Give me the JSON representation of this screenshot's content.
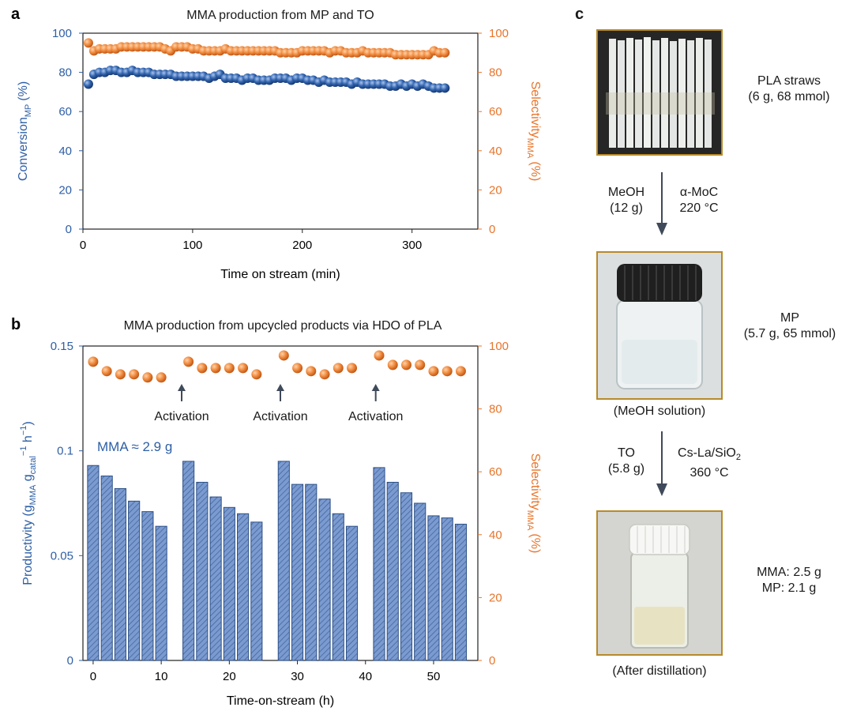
{
  "panel_a": {
    "letter": "a",
    "chart_data": {
      "type": "scatter",
      "title": "MMA production from MP and TO",
      "xlabel": "Time on stream (min)",
      "ylabel_left": "Conversion",
      "ylabel_left_sub": "MP",
      "ylabel_left_unit": "(%)",
      "ylabel_right": "Selectivity",
      "ylabel_right_sub": "MMA",
      "ylabel_right_unit": "(%)",
      "xlim": [
        0,
        360
      ],
      "ylim": [
        0,
        100
      ],
      "xticks": [
        0,
        100,
        200,
        300
      ],
      "yticks": [
        0,
        20,
        40,
        60,
        80,
        100
      ],
      "series": [
        {
          "name": "Conversion_MP",
          "color": "#2e5fa6",
          "x": [
            5,
            10,
            15,
            20,
            25,
            30,
            35,
            40,
            45,
            50,
            55,
            60,
            65,
            70,
            75,
            80,
            85,
            90,
            95,
            100,
            105,
            110,
            115,
            120,
            125,
            130,
            135,
            140,
            145,
            150,
            155,
            160,
            165,
            170,
            175,
            180,
            185,
            190,
            195,
            200,
            205,
            210,
            215,
            220,
            225,
            230,
            235,
            240,
            245,
            250,
            255,
            260,
            265,
            270,
            275,
            280,
            285,
            290,
            295,
            300,
            305,
            310,
            315,
            320,
            325,
            330
          ],
          "y": [
            74,
            79,
            80,
            80,
            81,
            81,
            80,
            80,
            81,
            80,
            80,
            80,
            79,
            79,
            79,
            79,
            78,
            78,
            78,
            78,
            78,
            78,
            77,
            78,
            79,
            77,
            77,
            77,
            76,
            77,
            77,
            76,
            76,
            76,
            77,
            77,
            77,
            76,
            77,
            77,
            76,
            76,
            75,
            76,
            75,
            75,
            75,
            75,
            74,
            75,
            74,
            74,
            74,
            74,
            74,
            73,
            73,
            74,
            73,
            74,
            73,
            74,
            73,
            72,
            72,
            72
          ]
        },
        {
          "name": "Selectivity_MMA",
          "color": "#e8742a",
          "x": [
            5,
            10,
            15,
            20,
            25,
            30,
            35,
            40,
            45,
            50,
            55,
            60,
            65,
            70,
            75,
            80,
            85,
            90,
            95,
            100,
            105,
            110,
            115,
            120,
            125,
            130,
            135,
            140,
            145,
            150,
            155,
            160,
            165,
            170,
            175,
            180,
            185,
            190,
            195,
            200,
            205,
            210,
            215,
            220,
            225,
            230,
            235,
            240,
            245,
            250,
            255,
            260,
            265,
            270,
            275,
            280,
            285,
            290,
            295,
            300,
            305,
            310,
            315,
            320,
            325,
            330
          ],
          "y": [
            95,
            91,
            92,
            92,
            92,
            92,
            93,
            93,
            93,
            93,
            93,
            93,
            93,
            93,
            92,
            91,
            93,
            93,
            93,
            92,
            92,
            91,
            91,
            91,
            91,
            92,
            91,
            91,
            91,
            91,
            91,
            91,
            91,
            91,
            91,
            90,
            90,
            90,
            90,
            91,
            91,
            91,
            91,
            91,
            90,
            91,
            91,
            90,
            90,
            90,
            91,
            90,
            90,
            90,
            90,
            90,
            89,
            89,
            89,
            89,
            89,
            89,
            89,
            91,
            90,
            90
          ]
        }
      ]
    }
  },
  "panel_b": {
    "letter": "b",
    "annotation": "MMA ≈ 2.9 g",
    "activation_label": "Activation",
    "chart_data": {
      "type": "bar",
      "title": "MMA production from upcycled products via HDO of PLA",
      "xlabel": "Time-on-stream (h)",
      "ylabel_left": "Productivity (g",
      "ylabel_left_sub1": "MMA",
      "ylabel_left_mid": " g",
      "ylabel_left_sub2": "catal",
      "ylabel_left_sup": "−1",
      "ylabel_left_end": " h",
      "ylabel_left_sup2": "−1",
      "ylabel_left_close": ")",
      "ylabel_right": "Selectivity",
      "ylabel_right_sub": "MMA",
      "ylabel_right_unit": "(%)",
      "xlim": [
        -1.5,
        56.5
      ],
      "ylim_left": [
        0,
        0.15
      ],
      "ylim_right": [
        0,
        100
      ],
      "xticks": [
        0,
        10,
        20,
        30,
        40,
        50
      ],
      "yticks_left": [
        "0",
        "0.05",
        "0.1",
        "0.15"
      ],
      "yticks_left_values": [
        0,
        0.05,
        0.1,
        0.15
      ],
      "yticks_right": [
        0,
        20,
        40,
        60,
        80,
        100
      ],
      "bars": {
        "x": [
          0,
          2,
          4,
          6,
          8,
          10,
          14,
          16,
          18,
          20,
          22,
          24,
          28,
          30,
          32,
          34,
          36,
          38,
          42,
          44,
          46,
          48,
          50,
          52,
          54
        ],
        "values": [
          0.093,
          0.088,
          0.082,
          0.076,
          0.071,
          0.064,
          0.095,
          0.085,
          0.078,
          0.073,
          0.07,
          0.066,
          0.095,
          0.084,
          0.084,
          0.077,
          0.07,
          0.064,
          0.092,
          0.085,
          0.08,
          0.075,
          0.069,
          0.068,
          0.065
        ]
      },
      "selectivity": {
        "x": [
          0,
          2,
          4,
          6,
          8,
          10,
          14,
          16,
          18,
          20,
          22,
          24,
          28,
          30,
          32,
          34,
          36,
          38,
          42,
          44,
          46,
          48,
          50,
          52,
          54
        ],
        "values": [
          95,
          92,
          91,
          91,
          90,
          90,
          95,
          93,
          93,
          93,
          93,
          91,
          97,
          93,
          92,
          91,
          93,
          93,
          97,
          94,
          94,
          94,
          92,
          92,
          92
        ]
      },
      "activation_x": [
        13,
        27.5,
        41.5
      ]
    }
  },
  "panel_c": {
    "letter": "c",
    "step1_label": "PLA straws",
    "step1_amount": "(6 g, 68 mmol)",
    "arrow1_left1": "MeOH",
    "arrow1_left2": "(12 g)",
    "arrow1_right1": "α-MoC",
    "arrow1_right2": "220 °C",
    "step2_label": "MP",
    "step2_amount": "(5.7 g, 65 mmol)",
    "step2_caption": "(MeOH solution)",
    "arrow2_left1": "TO",
    "arrow2_left2": "(5.8 g)",
    "arrow2_right1a": "Cs-La/SiO",
    "arrow2_right1_sub": "2",
    "arrow2_right2": "360 °C",
    "step3_line1": "MMA: 2.5 g",
    "step3_line2": "MP: 2.1 g",
    "step3_caption": "(After distillation)"
  },
  "colors": {
    "blue": "#2e5fa6",
    "orange": "#e8742a",
    "bar_fill": "#7b9bd0",
    "frame": "#b88a2a"
  }
}
